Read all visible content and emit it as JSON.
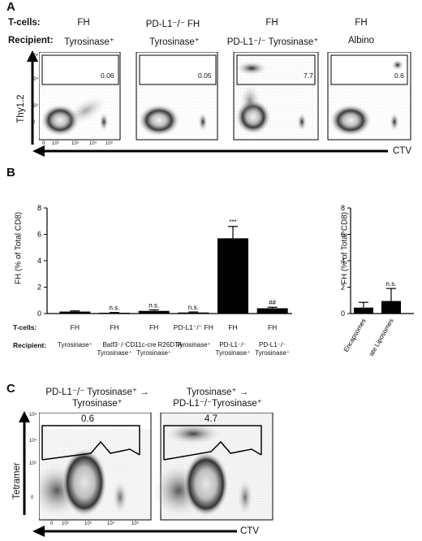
{
  "panelA": {
    "letter": "A",
    "tcells_label": "T-cells:",
    "recipient_label": "Recipient:",
    "columns": [
      {
        "tcell": "FH",
        "recipient": "Tyrosinase⁺",
        "gate_value": "0.06"
      },
      {
        "tcell": "PD-L1⁻/⁻ FH",
        "recipient": "Tyrosinase⁺",
        "gate_value": "0.05"
      },
      {
        "tcell": "FH",
        "recipient": "PD-L1⁻/⁻ Tyrosinase⁺",
        "gate_value": "7.7"
      },
      {
        "tcell": "FH",
        "recipient": "Albino",
        "gate_value": "0.6"
      }
    ],
    "y_axis_label": "Thy1.2",
    "x_axis_label": "CTV",
    "y_ticks": [
      "10⁵",
      "10⁴",
      "10³",
      "0"
    ],
    "x_ticks": [
      "0",
      "10²",
      "10³",
      "10⁴",
      "10⁵"
    ]
  },
  "panelB": {
    "letter": "B",
    "ylabel": "FH (% of Total CD8)",
    "tcells_label": "T-cells:",
    "recipient_label": "Recipient:",
    "y_ticks": [
      "0",
      "2",
      "4",
      "6",
      "8"
    ],
    "bars": [
      {
        "tcell": "FH",
        "recipient": "Tyrosinase⁺",
        "sig": ""
      },
      {
        "tcell": "FH",
        "recipient": "Batf3⁻/⁻ Tyrosinase⁺",
        "sig": "n.s."
      },
      {
        "tcell": "FH",
        "recipient": "CD11c-cre R26DTA Tyrosinase⁺",
        "sig": "n.s."
      },
      {
        "tcell": "PD-L1⁻/⁻ FH",
        "recipient": "Tyrosinase⁺",
        "sig": "n.s."
      },
      {
        "tcell": "FH",
        "recipient": "PD-L1⁻/⁻ Tyrosinase⁺",
        "sig": "***"
      },
      {
        "tcell": "FH",
        "recipient": "PD-L1⁻/⁻ Tyrosinase⁺",
        "sig": "##"
      }
    ],
    "right_chart": {
      "ylabel": "FH (% of Total CD8)",
      "y_ticks": [
        "0",
        "2",
        "4",
        "6",
        "8"
      ],
      "sig": "n.s.",
      "categories": [
        "Encapsomes",
        "Clodronate Liposomes"
      ]
    }
  },
  "panelC": {
    "letter": "C",
    "plots": [
      {
        "title_line1": "PD-L1⁻/⁻ Tyrosinase⁺ →",
        "title_line2": "Tyrosinase⁺",
        "gate_value": "0.6"
      },
      {
        "title_line1": "Tyrosinase⁺ →",
        "title_line2": "PD-L1⁻/⁻Tyrosinase⁺",
        "gate_value": "4.7"
      }
    ],
    "y_axis_label": "Tetramer",
    "x_axis_label": "CTV",
    "y_ticks": [
      "10⁵",
      "10⁴",
      "10³",
      "0"
    ],
    "x_ticks": [
      "0",
      "10²",
      "10³",
      "10⁴",
      "10⁵"
    ]
  },
  "chart_data": [
    {
      "type": "bar",
      "categories": [
        "Tyrosinase⁺ (FH)",
        "Batf3⁻/⁻ Tyrosinase⁺ (FH)",
        "CD11c-cre R26DTA Tyrosinase⁺ (FH)",
        "Tyrosinase⁺ (PD-L1⁻/⁻ FH)",
        "PD-L1⁻/⁻ Tyrosinase⁺ (FH)",
        "PD-L1⁻/⁻ Tyrosinase⁺ (FH)"
      ],
      "values": [
        0.15,
        0.06,
        0.2,
        0.08,
        5.7,
        0.4
      ],
      "errors": [
        0.05,
        0.02,
        0.08,
        0.04,
        0.9,
        0.08
      ],
      "ylabel": "FH (% of Total CD8)",
      "ylim": [
        0,
        8
      ]
    },
    {
      "type": "bar",
      "categories": [
        "Encapsomes",
        "Clodronate Liposomes"
      ],
      "values": [
        0.45,
        0.95
      ],
      "errors": [
        0.4,
        0.95
      ],
      "ylabel": "FH (% of Total CD8)",
      "ylim": [
        0,
        8
      ]
    }
  ]
}
